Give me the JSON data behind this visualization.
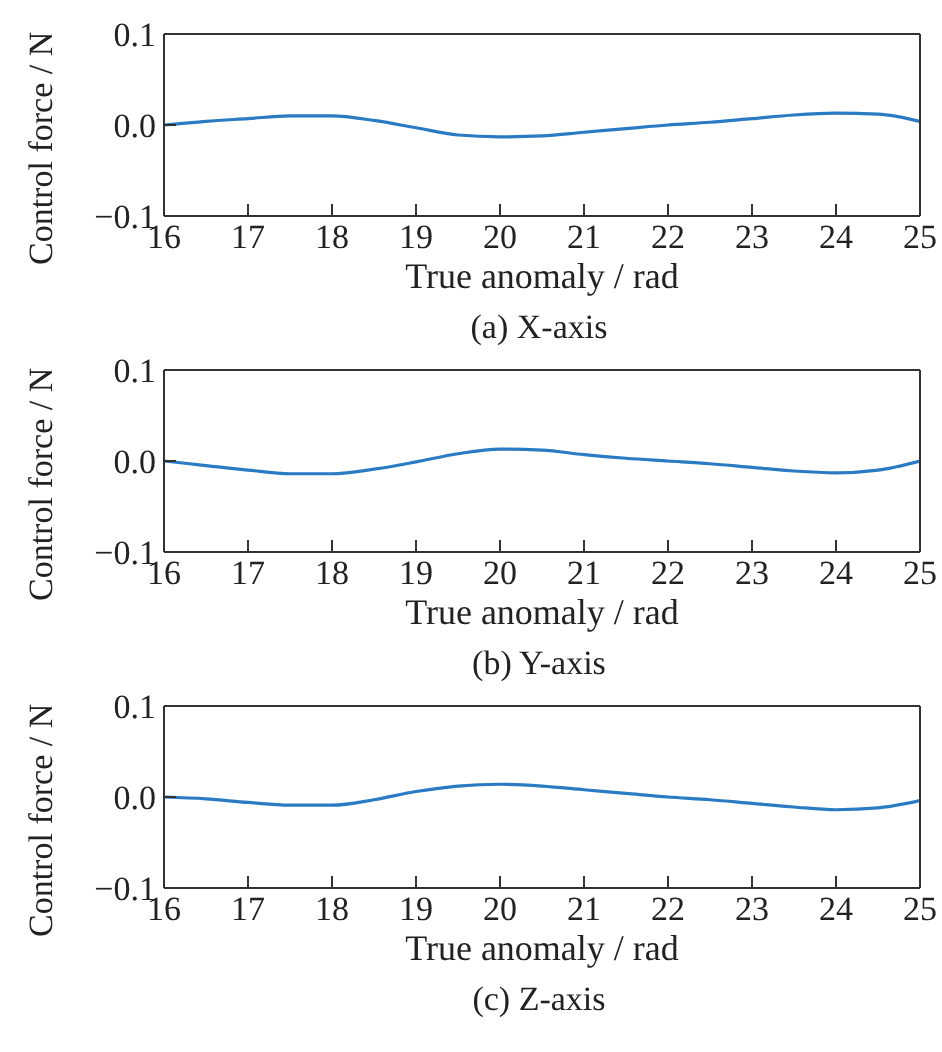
{
  "chart_data": [
    {
      "type": "line",
      "title": "(a) X-axis",
      "xlabel": "True anomaly / rad",
      "ylabel": "Control force / N",
      "xlim": [
        16,
        25
      ],
      "xticks": [
        16,
        17,
        18,
        19,
        20,
        21,
        22,
        23,
        24,
        25
      ],
      "ylim": [
        -0.1,
        0.1
      ],
      "yticks": [
        {
          "value": -0.1,
          "label": "−0.1"
        },
        {
          "value": 0,
          "label": "0.0"
        },
        {
          "value": 0.1,
          "label": "0.1"
        }
      ],
      "grid": false,
      "legend": false,
      "marker": "none",
      "line_style": "solid",
      "x": [
        16,
        16.5,
        17,
        17.5,
        18,
        18.5,
        19,
        19.5,
        20,
        20.5,
        21,
        21.5,
        22,
        22.5,
        23,
        23.5,
        24,
        24.5,
        25
      ],
      "series": [
        {
          "color": "#2b7bc4",
          "values": [
            0.0,
            0.004,
            0.007,
            0.01,
            0.01,
            0.005,
            -0.003,
            -0.011,
            -0.013,
            -0.012,
            -0.008,
            -0.004,
            0.0,
            0.003,
            0.007,
            0.011,
            0.013,
            0.012,
            0.004
          ]
        }
      ]
    },
    {
      "type": "line",
      "title": "(b) Y-axis",
      "xlabel": "True anomaly / rad",
      "ylabel": "Control force / N",
      "xlim": [
        16,
        25
      ],
      "xticks": [
        16,
        17,
        18,
        19,
        20,
        21,
        22,
        23,
        24,
        25
      ],
      "ylim": [
        -0.1,
        0.1
      ],
      "yticks": [
        {
          "value": -0.1,
          "label": "−0.1"
        },
        {
          "value": 0,
          "label": "0.0"
        },
        {
          "value": 0.1,
          "label": "0.1"
        }
      ],
      "grid": false,
      "legend": false,
      "marker": "none",
      "line_style": "solid",
      "x": [
        16,
        16.5,
        17,
        17.5,
        18,
        18.5,
        19,
        19.5,
        20,
        20.5,
        21,
        21.5,
        22,
        22.5,
        23,
        23.5,
        24,
        24.5,
        25
      ],
      "series": [
        {
          "color": "#2b7bc4",
          "values": [
            0.0,
            -0.005,
            -0.01,
            -0.014,
            -0.014,
            -0.009,
            -0.001,
            0.008,
            0.013,
            0.012,
            0.007,
            0.003,
            0.0,
            -0.003,
            -0.007,
            -0.011,
            -0.013,
            -0.01,
            0.0
          ]
        }
      ]
    },
    {
      "type": "line",
      "title": "(c) Z-axis",
      "xlabel": "True anomaly / rad",
      "ylabel": "Control force / N",
      "xlim": [
        16,
        25
      ],
      "xticks": [
        16,
        17,
        18,
        19,
        20,
        21,
        22,
        23,
        24,
        25
      ],
      "ylim": [
        -0.1,
        0.1
      ],
      "yticks": [
        {
          "value": -0.1,
          "label": "−0.1"
        },
        {
          "value": 0,
          "label": "0.0"
        },
        {
          "value": 0.1,
          "label": "0.1"
        }
      ],
      "grid": false,
      "legend": false,
      "marker": "none",
      "line_style": "solid",
      "x": [
        16,
        16.5,
        17,
        17.5,
        18,
        18.5,
        19,
        19.5,
        20,
        20.5,
        21,
        21.5,
        22,
        22.5,
        23,
        23.5,
        24,
        24.5,
        25
      ],
      "series": [
        {
          "color": "#2b7bc4",
          "values": [
            0.0,
            -0.002,
            -0.006,
            -0.009,
            -0.009,
            -0.003,
            0.006,
            0.012,
            0.014,
            0.012,
            0.008,
            0.004,
            0.0,
            -0.003,
            -0.007,
            -0.011,
            -0.014,
            -0.012,
            -0.004
          ]
        }
      ]
    }
  ]
}
